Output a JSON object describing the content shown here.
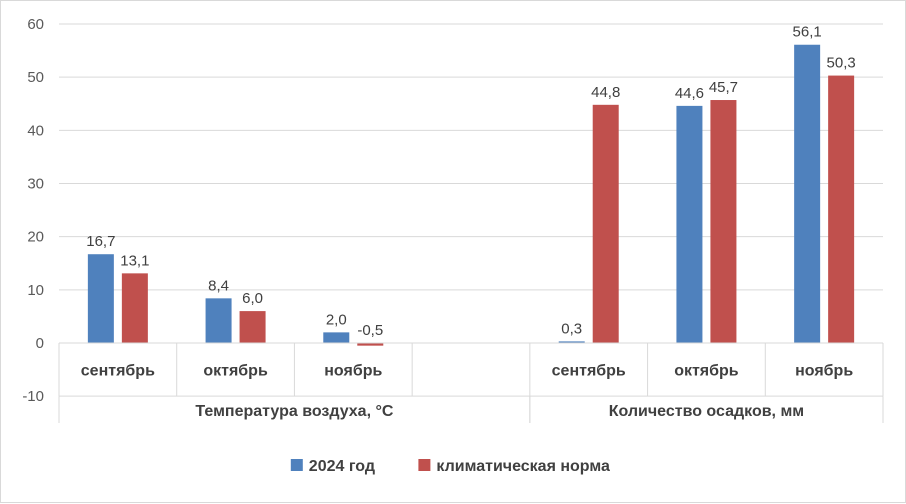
{
  "chart_data": {
    "type": "bar",
    "ylim": [
      -10,
      60
    ],
    "yticks": [
      -10,
      0,
      10,
      20,
      30,
      40,
      50,
      60
    ],
    "grid": true,
    "legend_position": "bottom",
    "groups": [
      {
        "label": "Температура воздуха, °С",
        "categories": [
          "сентябрь",
          "октябрь",
          "ноябрь",
          ""
        ],
        "series": [
          {
            "name": "2024 год",
            "values": [
              16.7,
              8.4,
              2.0,
              null
            ],
            "labels": [
              "16,7",
              "8,4",
              "2,0",
              ""
            ]
          },
          {
            "name": "климатическая норма",
            "values": [
              13.1,
              6.0,
              -0.5,
              null
            ],
            "labels": [
              "13,1",
              "6,0",
              "-0,5",
              ""
            ]
          }
        ]
      },
      {
        "label": "Количество осадков, мм",
        "categories": [
          "сентябрь",
          "октябрь",
          "ноябрь"
        ],
        "series": [
          {
            "name": "2024 год",
            "values": [
              0.3,
              44.6,
              56.1
            ],
            "labels": [
              "0,3",
              "44,6",
              "56,1"
            ]
          },
          {
            "name": "климатическая норма",
            "values": [
              44.8,
              45.7,
              50.3
            ],
            "labels": [
              "44,8",
              "45,7",
              "50,3"
            ]
          }
        ]
      }
    ],
    "legend": [
      {
        "name": "2024 год",
        "color": "#4f81bd"
      },
      {
        "name": "климатическая норма",
        "color": "#c0504d"
      }
    ]
  }
}
